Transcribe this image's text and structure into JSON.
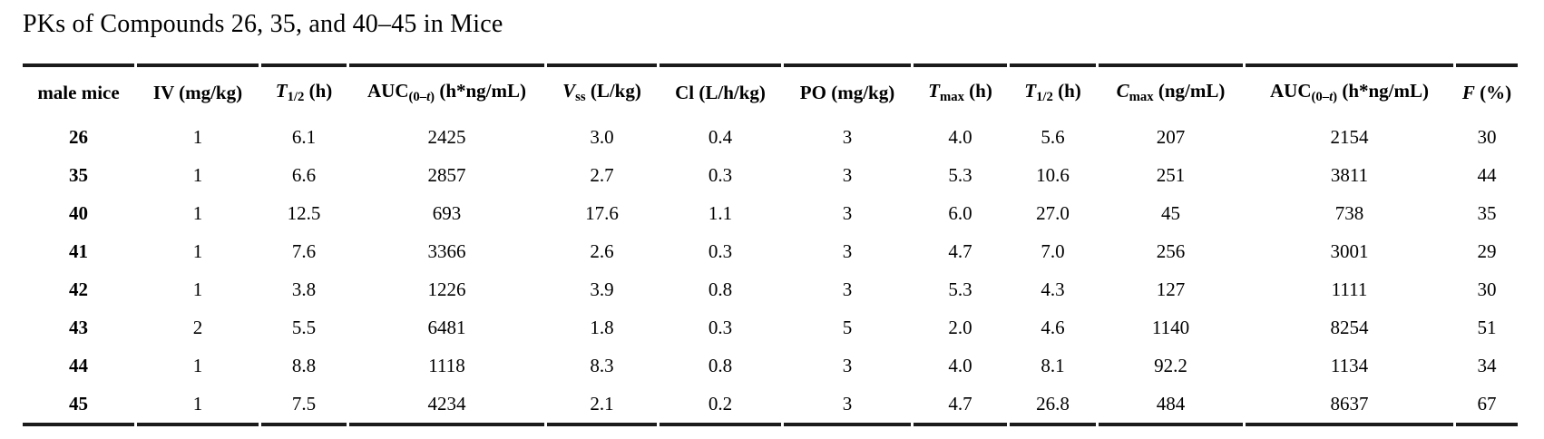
{
  "title": "PKs of Compounds 26, 35, and 40–45 in Mice",
  "colors": {
    "text": "#000000",
    "rule": "#1b1b1b",
    "background": "#ffffff"
  },
  "table": {
    "columns": [
      {
        "key": "compound",
        "segments": [
          {
            "t": "male mice"
          }
        ]
      },
      {
        "key": "iv-dose",
        "segments": [
          {
            "t": "IV (mg/kg)"
          }
        ]
      },
      {
        "key": "t-half-iv",
        "segments": [
          {
            "t": "T",
            "i": true
          },
          {
            "t": "1/2",
            "sub": true
          },
          {
            "t": " (h)"
          }
        ]
      },
      {
        "key": "auc-iv",
        "segments": [
          {
            "t": "AUC"
          },
          {
            "t": "(0–",
            "sub": true
          },
          {
            "t": "t",
            "sub": true,
            "i": true
          },
          {
            "t": ")",
            "sub": true
          },
          {
            "t": " (h*ng/mL)"
          }
        ]
      },
      {
        "key": "vss",
        "segments": [
          {
            "t": "V",
            "i": true
          },
          {
            "t": "ss",
            "sub": true
          },
          {
            "t": " (L/kg)"
          }
        ]
      },
      {
        "key": "cl",
        "segments": [
          {
            "t": "Cl (L/h/kg)"
          }
        ]
      },
      {
        "key": "po-dose",
        "segments": [
          {
            "t": "PO (mg/kg)"
          }
        ]
      },
      {
        "key": "tmax",
        "segments": [
          {
            "t": "T",
            "i": true
          },
          {
            "t": "max",
            "sub": true
          },
          {
            "t": " (h)"
          }
        ]
      },
      {
        "key": "t-half-po",
        "segments": [
          {
            "t": "T",
            "i": true
          },
          {
            "t": "1/2",
            "sub": true
          },
          {
            "t": " (h)"
          }
        ]
      },
      {
        "key": "cmax",
        "segments": [
          {
            "t": "C",
            "i": true
          },
          {
            "t": "max",
            "sub": true
          },
          {
            "t": " (ng/mL)"
          }
        ]
      },
      {
        "key": "auc-po",
        "segments": [
          {
            "t": "AUC"
          },
          {
            "t": "(0–",
            "sub": true
          },
          {
            "t": "t",
            "sub": true,
            "i": true
          },
          {
            "t": ")",
            "sub": true
          },
          {
            "t": " (h*ng/mL)"
          }
        ]
      },
      {
        "key": "f-percent",
        "segments": [
          {
            "t": "F",
            "i": true
          },
          {
            "t": " (%)"
          }
        ]
      }
    ],
    "rows": [
      {
        "compound": "26",
        "values": [
          "1",
          "6.1",
          "2425",
          "3.0",
          "0.4",
          "3",
          "4.0",
          "5.6",
          "207",
          "2154",
          "30"
        ]
      },
      {
        "compound": "35",
        "values": [
          "1",
          "6.6",
          "2857",
          "2.7",
          "0.3",
          "3",
          "5.3",
          "10.6",
          "251",
          "3811",
          "44"
        ]
      },
      {
        "compound": "40",
        "values": [
          "1",
          "12.5",
          "693",
          "17.6",
          "1.1",
          "3",
          "6.0",
          "27.0",
          "45",
          "738",
          "35"
        ]
      },
      {
        "compound": "41",
        "values": [
          "1",
          "7.6",
          "3366",
          "2.6",
          "0.3",
          "3",
          "4.7",
          "7.0",
          "256",
          "3001",
          "29"
        ]
      },
      {
        "compound": "42",
        "values": [
          "1",
          "3.8",
          "1226",
          "3.9",
          "0.8",
          "3",
          "5.3",
          "4.3",
          "127",
          "1111",
          "30"
        ]
      },
      {
        "compound": "43",
        "values": [
          "2",
          "5.5",
          "6481",
          "1.8",
          "0.3",
          "5",
          "2.0",
          "4.6",
          "1140",
          "8254",
          "51"
        ]
      },
      {
        "compound": "44",
        "values": [
          "1",
          "8.8",
          "1118",
          "8.3",
          "0.8",
          "3",
          "4.0",
          "8.1",
          "92.2",
          "1134",
          "34"
        ]
      },
      {
        "compound": "45",
        "values": [
          "1",
          "7.5",
          "4234",
          "2.1",
          "0.2",
          "3",
          "4.7",
          "26.8",
          "484",
          "8637",
          "67"
        ]
      }
    ]
  }
}
